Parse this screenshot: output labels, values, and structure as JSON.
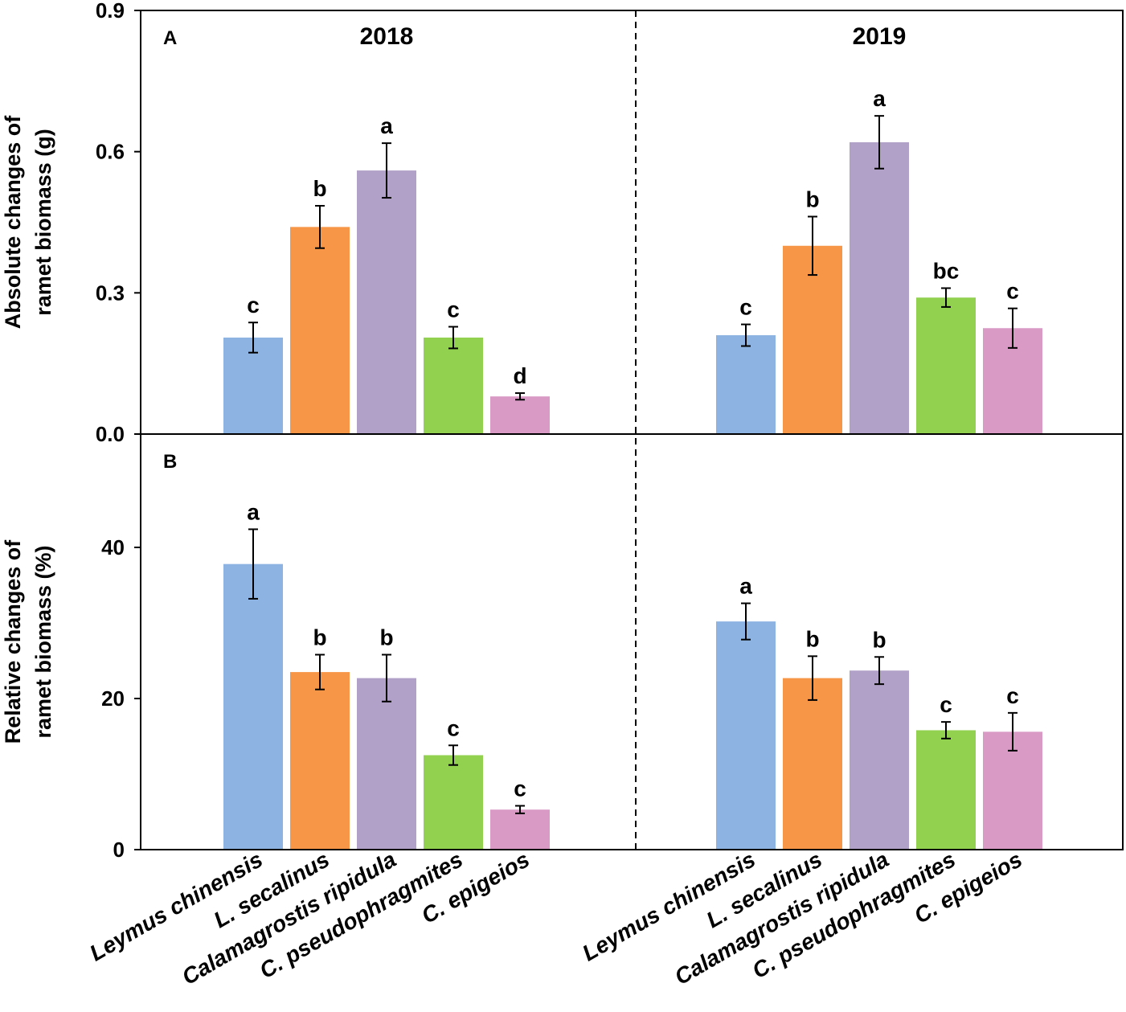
{
  "chart_data": [
    {
      "panel": "A",
      "type": "bar",
      "ylabel_lines": [
        "Absolute changes of",
        "ramet biomass (g)"
      ],
      "ylim": [
        0,
        0.9
      ],
      "yticks": [
        0.0,
        0.3,
        0.6,
        0.9
      ],
      "ytick_labels": [
        "0.0",
        "0.3",
        "0.6",
        "0.9"
      ],
      "groups": [
        "2018",
        "2019"
      ],
      "categories": [
        "Leymus chinensis",
        "L. secalinus",
        "Calamagrostis ripidula",
        "C. pseudophragmites",
        "C. epigeios"
      ],
      "series": [
        {
          "group": "2018",
          "values": [
            0.205,
            0.44,
            0.56,
            0.205,
            0.08
          ],
          "errors": [
            0.032,
            0.045,
            0.058,
            0.023,
            0.007
          ],
          "letters": [
            "c",
            "b",
            "a",
            "c",
            "d"
          ]
        },
        {
          "group": "2019",
          "values": [
            0.21,
            0.4,
            0.62,
            0.29,
            0.225
          ],
          "errors": [
            0.023,
            0.062,
            0.056,
            0.02,
            0.042
          ],
          "letters": [
            "c",
            "b",
            "a",
            "bc",
            "c"
          ]
        }
      ]
    },
    {
      "panel": "B",
      "type": "bar",
      "ylabel_lines": [
        "Relative changes of",
        "ramet biomass (%)"
      ],
      "ylim": [
        0,
        55
      ],
      "yticks": [
        0,
        20,
        40
      ],
      "ytick_labels": [
        "0",
        "20",
        "40"
      ],
      "groups": [
        "2018",
        "2019"
      ],
      "categories": [
        "Leymus chinensis",
        "L. secalinus",
        "Calamagrostis ripidula",
        "C. pseudophragmites",
        "C. epigeios"
      ],
      "series": [
        {
          "group": "2018",
          "values": [
            37.8,
            23.5,
            22.7,
            12.5,
            5.3
          ],
          "errors": [
            4.6,
            2.3,
            3.1,
            1.3,
            0.5
          ],
          "letters": [
            "a",
            "b",
            "b",
            "c",
            "c"
          ]
        },
        {
          "group": "2019",
          "values": [
            30.2,
            22.7,
            23.7,
            15.8,
            15.6
          ],
          "errors": [
            2.4,
            2.9,
            1.8,
            1.1,
            2.5
          ],
          "letters": [
            "a",
            "b",
            "b",
            "c",
            "c"
          ]
        }
      ]
    }
  ],
  "colors": [
    "#8db3e2",
    "#f79646",
    "#b1a0c7",
    "#92d050",
    "#d99ac6"
  ]
}
